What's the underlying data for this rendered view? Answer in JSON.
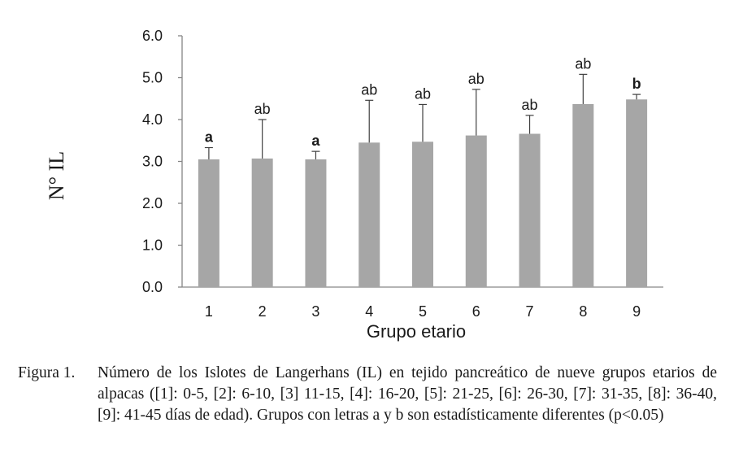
{
  "chart_data": {
    "type": "bar",
    "categories": [
      "1",
      "2",
      "3",
      "4",
      "5",
      "6",
      "7",
      "8",
      "9"
    ],
    "series": [
      {
        "values": [
          3.05,
          3.07,
          3.05,
          3.45,
          3.47,
          3.62,
          3.66,
          4.37,
          4.48
        ],
        "error_upper": [
          3.33,
          4.0,
          3.24,
          4.46,
          4.36,
          4.72,
          4.1,
          5.08,
          4.6
        ],
        "significance": [
          "a",
          "ab",
          "a",
          "ab",
          "ab",
          "ab",
          "ab",
          "ab",
          "b"
        ],
        "significance_bold": [
          true,
          false,
          true,
          false,
          false,
          false,
          false,
          false,
          true
        ]
      }
    ],
    "title": "",
    "xlabel": "Grupo etario",
    "ylabel": "N° IL",
    "ylim": [
      0,
      6
    ],
    "yticks": [
      "0.0",
      "1.0",
      "2.0",
      "3.0",
      "4.0",
      "5.0",
      "6.0"
    ],
    "bar_color": "#a6a6a6",
    "error_bar_color": "#404040",
    "grid": false,
    "legend": "none"
  },
  "caption": {
    "label": "Figura 1.",
    "text": "Número de los Islotes de Langerhans (IL) en tejido pancreático de nueve grupos etarios de alpacas ([1]: 0-5, [2]: 6-10, [3] 11-15, [4]: 16-20, [5]: 21-25, [6]: 26-30, [7]: 31-35, [8]: 36-40, [9]: 41-45 días de edad). Grupos con letras a y b son estadísticamente diferentes (p<0.05)"
  }
}
